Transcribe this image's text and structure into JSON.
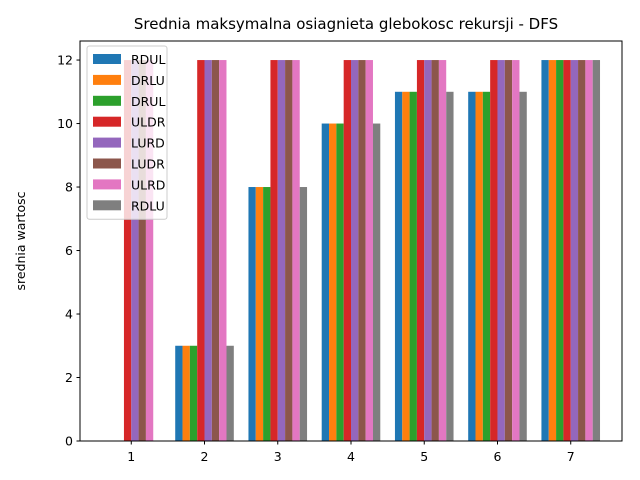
{
  "chart_data": {
    "type": "bar",
    "title": "Srednia maksymalna osiagnieta glebokosc rekursji - DFS",
    "xlabel": "",
    "ylabel": "srednia wartosc",
    "categories": [
      "1",
      "2",
      "3",
      "4",
      "5",
      "6",
      "7"
    ],
    "ylim": [
      0,
      12.6
    ],
    "yticks": [
      0,
      2,
      4,
      6,
      8,
      10,
      12
    ],
    "grid": false,
    "legend_position": "top-left",
    "series": [
      {
        "name": "RDUL",
        "color": "#1f77b4",
        "values": [
          0,
          3,
          8,
          10,
          11,
          11,
          12
        ]
      },
      {
        "name": "DRLU",
        "color": "#ff7f0e",
        "values": [
          0,
          3,
          8,
          10,
          11,
          11,
          12
        ]
      },
      {
        "name": "DRUL",
        "color": "#2ca02c",
        "values": [
          0,
          3,
          8,
          10,
          11,
          11,
          12
        ]
      },
      {
        "name": "ULDR",
        "color": "#d62728",
        "values": [
          12,
          12,
          12,
          12,
          12,
          12,
          12
        ]
      },
      {
        "name": "LURD",
        "color": "#9467bd",
        "values": [
          12,
          12,
          12,
          12,
          12,
          12,
          12
        ]
      },
      {
        "name": "LUDR",
        "color": "#8c564b",
        "values": [
          12,
          12,
          12,
          12,
          12,
          12,
          12
        ]
      },
      {
        "name": "ULRD",
        "color": "#e377c2",
        "values": [
          12,
          12,
          12,
          12,
          12,
          12,
          12
        ]
      },
      {
        "name": "RDLU",
        "color": "#7f7f7f",
        "values": [
          0,
          3,
          8,
          10,
          11,
          11,
          12
        ]
      }
    ]
  }
}
